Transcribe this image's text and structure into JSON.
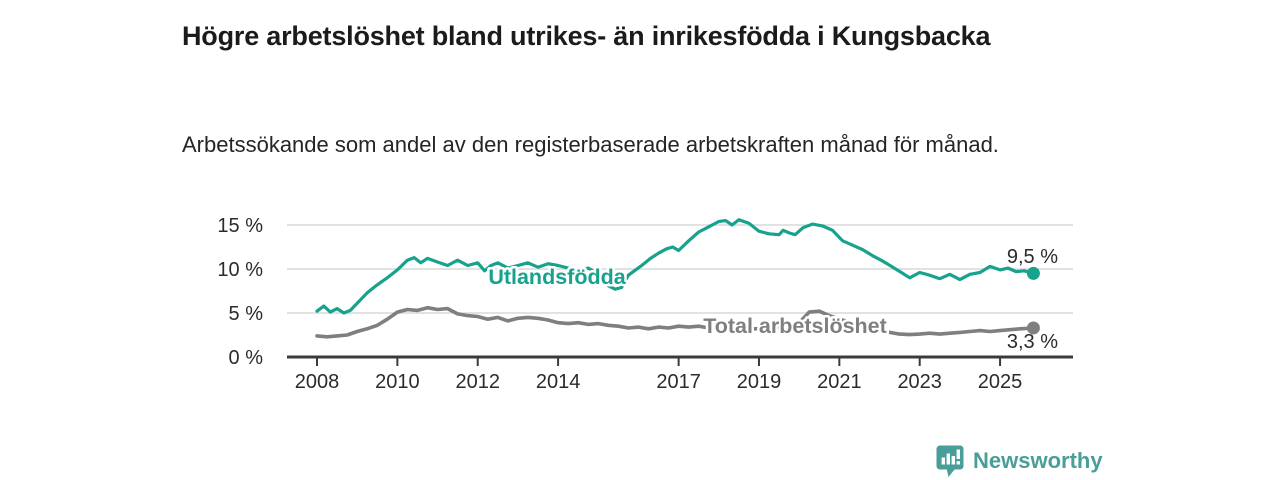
{
  "header": {
    "title": "Högre arbetslöshet bland utrikes- än inrikesfödda i Kungsbacka",
    "subtitle": "Arbetssökande som andel av den registerbaserade arbetskraften månad för månad."
  },
  "colors": {
    "accent_teal": "#17a28d",
    "series_gray": "#7f7f7f",
    "axis": "#3b3b3b",
    "gridline": "#d9d9d9",
    "text_dark": "#2b2b2b",
    "brand_teal": "#4a9e99"
  },
  "footer": {
    "brand": "Newsworthy",
    "logo_icon": "bar-chart-speech-bubble"
  },
  "chart_data": {
    "type": "line",
    "title": "Högre arbetslöshet bland utrikes- än inrikesfödda i Kungsbacka",
    "subtitle": "Arbetssökande som andel av den registerbaserade arbetskraften månad för månad.",
    "xlabel": "",
    "ylabel": "",
    "xlim": [
      2007.9,
      2026.8
    ],
    "ylim": [
      0,
      16.5
    ],
    "grid": "horizontal",
    "legend_position": "inline-labels",
    "y_ticks": [
      {
        "value": 0,
        "label": "0 %"
      },
      {
        "value": 5,
        "label": "5 %"
      },
      {
        "value": 10,
        "label": "10 %"
      },
      {
        "value": 15,
        "label": "15 %"
      }
    ],
    "x_ticks": [
      {
        "value": 2008,
        "label": "2008"
      },
      {
        "value": 2010,
        "label": "2010"
      },
      {
        "value": 2012,
        "label": "2012"
      },
      {
        "value": 2014,
        "label": "2014"
      },
      {
        "value": 2017,
        "label": "2017"
      },
      {
        "value": 2019,
        "label": "2019"
      },
      {
        "value": 2021,
        "label": "2021"
      },
      {
        "value": 2023,
        "label": "2023"
      },
      {
        "value": 2025,
        "label": "2025"
      }
    ],
    "series": [
      {
        "name": "Utlandsfödda",
        "color": "#17a28d",
        "end_label": "9,5 %",
        "points": [
          [
            2008.0,
            5.2
          ],
          [
            2008.17,
            5.8
          ],
          [
            2008.33,
            5.1
          ],
          [
            2008.5,
            5.5
          ],
          [
            2008.67,
            5.0
          ],
          [
            2008.83,
            5.3
          ],
          [
            2009.0,
            6.1
          ],
          [
            2009.25,
            7.3
          ],
          [
            2009.5,
            8.2
          ],
          [
            2009.75,
            9.0
          ],
          [
            2010.0,
            9.9
          ],
          [
            2010.25,
            11.0
          ],
          [
            2010.42,
            11.3
          ],
          [
            2010.58,
            10.7
          ],
          [
            2010.75,
            11.2
          ],
          [
            2011.0,
            10.8
          ],
          [
            2011.25,
            10.4
          ],
          [
            2011.5,
            11.0
          ],
          [
            2011.75,
            10.4
          ],
          [
            2012.0,
            10.7
          ],
          [
            2012.17,
            9.8
          ],
          [
            2012.33,
            10.4
          ],
          [
            2012.5,
            10.7
          ],
          [
            2012.75,
            10.1
          ],
          [
            2013.0,
            10.4
          ],
          [
            2013.25,
            10.7
          ],
          [
            2013.5,
            10.2
          ],
          [
            2013.75,
            10.6
          ],
          [
            2014.0,
            10.4
          ],
          [
            2014.25,
            10.1
          ],
          [
            2014.5,
            9.9
          ],
          [
            2014.75,
            10.1
          ],
          [
            2015.0,
            9.4
          ],
          [
            2015.25,
            8.1
          ],
          [
            2015.42,
            7.7
          ],
          [
            2015.58,
            7.9
          ],
          [
            2015.75,
            9.3
          ],
          [
            2016.08,
            10.4
          ],
          [
            2016.3,
            11.2
          ],
          [
            2016.5,
            11.8
          ],
          [
            2016.7,
            12.3
          ],
          [
            2016.85,
            12.5
          ],
          [
            2017.0,
            12.1
          ],
          [
            2017.25,
            13.2
          ],
          [
            2017.5,
            14.2
          ],
          [
            2017.75,
            14.8
          ],
          [
            2018.0,
            15.4
          ],
          [
            2018.17,
            15.5
          ],
          [
            2018.33,
            15.0
          ],
          [
            2018.5,
            15.6
          ],
          [
            2018.75,
            15.2
          ],
          [
            2019.0,
            14.3
          ],
          [
            2019.25,
            14.0
          ],
          [
            2019.5,
            13.9
          ],
          [
            2019.6,
            14.4
          ],
          [
            2019.75,
            14.1
          ],
          [
            2019.9,
            13.9
          ],
          [
            2020.1,
            14.7
          ],
          [
            2020.33,
            15.1
          ],
          [
            2020.58,
            14.9
          ],
          [
            2020.83,
            14.4
          ],
          [
            2021.08,
            13.2
          ],
          [
            2021.33,
            12.7
          ],
          [
            2021.58,
            12.2
          ],
          [
            2021.83,
            11.5
          ],
          [
            2022.08,
            10.9
          ],
          [
            2022.33,
            10.2
          ],
          [
            2022.58,
            9.5
          ],
          [
            2022.75,
            9.0
          ],
          [
            2023.0,
            9.6
          ],
          [
            2023.25,
            9.3
          ],
          [
            2023.5,
            8.9
          ],
          [
            2023.75,
            9.4
          ],
          [
            2024.0,
            8.8
          ],
          [
            2024.25,
            9.4
          ],
          [
            2024.5,
            9.6
          ],
          [
            2024.75,
            10.3
          ],
          [
            2025.0,
            9.9
          ],
          [
            2025.2,
            10.1
          ],
          [
            2025.4,
            9.7
          ],
          [
            2025.6,
            9.8
          ],
          [
            2025.83,
            9.5
          ]
        ]
      },
      {
        "name": "Total arbetslöshet",
        "color": "#7f7f7f",
        "end_label": "3,3 %",
        "points": [
          [
            2008.0,
            2.4
          ],
          [
            2008.25,
            2.3
          ],
          [
            2008.5,
            2.4
          ],
          [
            2008.75,
            2.5
          ],
          [
            2009.0,
            2.9
          ],
          [
            2009.25,
            3.2
          ],
          [
            2009.5,
            3.6
          ],
          [
            2009.75,
            4.3
          ],
          [
            2010.0,
            5.1
          ],
          [
            2010.25,
            5.4
          ],
          [
            2010.5,
            5.3
          ],
          [
            2010.75,
            5.6
          ],
          [
            2011.0,
            5.4
          ],
          [
            2011.25,
            5.5
          ],
          [
            2011.5,
            4.9
          ],
          [
            2011.75,
            4.7
          ],
          [
            2012.0,
            4.6
          ],
          [
            2012.25,
            4.3
          ],
          [
            2012.5,
            4.5
          ],
          [
            2012.75,
            4.1
          ],
          [
            2013.0,
            4.4
          ],
          [
            2013.25,
            4.5
          ],
          [
            2013.5,
            4.4
          ],
          [
            2013.75,
            4.2
          ],
          [
            2014.0,
            3.9
          ],
          [
            2014.25,
            3.8
          ],
          [
            2014.5,
            3.9
          ],
          [
            2014.75,
            3.7
          ],
          [
            2015.0,
            3.8
          ],
          [
            2015.25,
            3.6
          ],
          [
            2015.5,
            3.5
          ],
          [
            2015.75,
            3.3
          ],
          [
            2016.0,
            3.4
          ],
          [
            2016.25,
            3.2
          ],
          [
            2016.5,
            3.4
          ],
          [
            2016.75,
            3.3
          ],
          [
            2017.0,
            3.5
          ],
          [
            2017.25,
            3.4
          ],
          [
            2017.5,
            3.5
          ],
          [
            2017.75,
            3.3
          ],
          [
            2018.0,
            3.2
          ],
          [
            2018.33,
            3.1
          ],
          [
            2018.67,
            3.2
          ],
          [
            2019.0,
            3.2
          ],
          [
            2019.33,
            3.3
          ],
          [
            2019.67,
            3.4
          ],
          [
            2020.0,
            3.9
          ],
          [
            2020.25,
            5.1
          ],
          [
            2020.5,
            5.2
          ],
          [
            2020.75,
            4.7
          ],
          [
            2021.0,
            4.3
          ],
          [
            2021.33,
            3.9
          ],
          [
            2021.67,
            3.5
          ],
          [
            2022.0,
            3.1
          ],
          [
            2022.25,
            2.8
          ],
          [
            2022.5,
            2.6
          ],
          [
            2022.75,
            2.55
          ],
          [
            2023.0,
            2.6
          ],
          [
            2023.25,
            2.7
          ],
          [
            2023.5,
            2.6
          ],
          [
            2023.75,
            2.7
          ],
          [
            2024.0,
            2.8
          ],
          [
            2024.25,
            2.9
          ],
          [
            2024.5,
            3.0
          ],
          [
            2024.75,
            2.9
          ],
          [
            2025.0,
            3.0
          ],
          [
            2025.25,
            3.1
          ],
          [
            2025.5,
            3.2
          ],
          [
            2025.83,
            3.3
          ]
        ]
      }
    ]
  }
}
